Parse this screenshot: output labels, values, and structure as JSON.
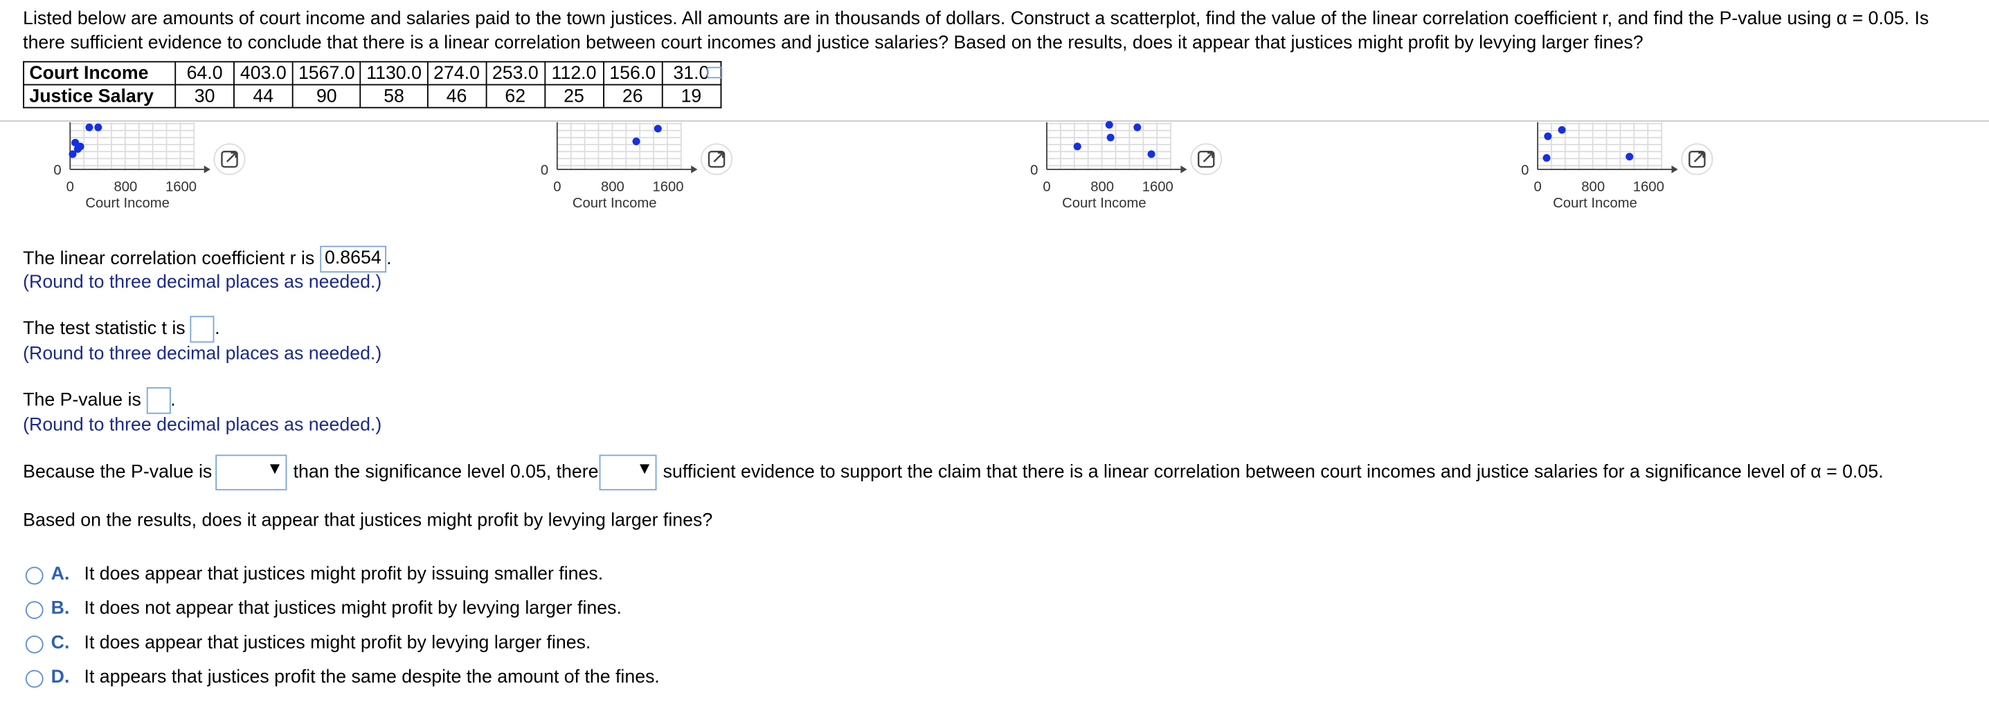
{
  "question": "Listed below are amounts of court income and salaries paid to the town justices. All amounts are in thousands of dollars. Construct a scatterplot, find the value of the linear correlation coefficient r, and find the P-value using α = 0.05. Is there sufficient evidence to conclude that there is a linear correlation between court incomes and justice salaries? Based on the results, does it appear that justices might profit by levying larger fines?",
  "table": {
    "rows": [
      [
        "Court Income",
        "64.0",
        "403.0",
        "1567.0",
        "1130.0",
        "274.0",
        "253.0",
        "112.0",
        "156.0",
        "31.0"
      ],
      [
        "Justice Salary",
        "30",
        "44",
        "90",
        "58",
        "46",
        "62",
        "25",
        "26",
        "19"
      ]
    ]
  },
  "plots": [
    {
      "y_tick": "0",
      "x_ticks": [
        "0",
        "800",
        "1600"
      ],
      "x_label": "Court Income"
    },
    {
      "y_tick": "0",
      "x_ticks": [
        "0",
        "800",
        "1600"
      ],
      "x_label": "Court Income"
    },
    {
      "y_tick": "0",
      "x_ticks": [
        "0",
        "800",
        "1600"
      ],
      "x_label": "Court Income"
    },
    {
      "y_tick": "0",
      "x_ticks": [
        "0",
        "800",
        "1600"
      ],
      "x_label": "Court Income"
    }
  ],
  "answers": {
    "r_prompt": "The linear correlation coefficient r is",
    "r_value": "0.8654",
    "r_note": "(Round to three decimal places as needed.)",
    "t_prompt": "The test statistic t is",
    "t_note": "(Round to three decimal places as needed.)",
    "p_prompt": "The P-value is",
    "p_note": "(Round to three decimal places as needed.)",
    "conclusion": [
      "Because the P-value is",
      "than the significance level 0.05, there",
      "sufficient evidence to support the claim that there is a linear correlation between court incomes and justice salaries for a significance level of α = 0.05."
    ],
    "question2": "Based on the results, does it appear that justices might profit by levying larger fines?",
    "options": [
      {
        "letter": "A.",
        "text": "It does appear that justices might profit by issuing smaller fines."
      },
      {
        "letter": "B.",
        "text": "It does not appear that justices might profit by levying larger fines."
      },
      {
        "letter": "C.",
        "text": "It does appear that justices might profit by levying larger fines."
      },
      {
        "letter": "D.",
        "text": "It appears that justices profit the same despite the amount of the fines."
      }
    ]
  }
}
